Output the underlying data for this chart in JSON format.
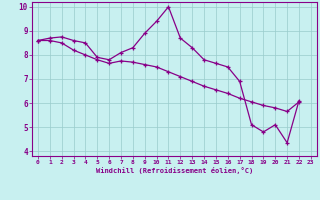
{
  "xlabel": "Windchill (Refroidissement éolien,°C)",
  "background_color": "#c8f0f0",
  "line_color": "#880088",
  "grid_color": "#99cccc",
  "xlim": [
    -0.5,
    23.5
  ],
  "ylim": [
    3.8,
    10.2
  ],
  "yticks": [
    4,
    5,
    6,
    7,
    8,
    9,
    10
  ],
  "xticks": [
    0,
    1,
    2,
    3,
    4,
    5,
    6,
    7,
    8,
    9,
    10,
    11,
    12,
    13,
    14,
    15,
    16,
    17,
    18,
    19,
    20,
    21,
    22,
    23
  ],
  "hours": [
    0,
    1,
    2,
    3,
    4,
    5,
    6,
    7,
    8,
    9,
    10,
    11,
    12,
    13,
    14,
    15,
    16,
    17,
    18,
    19,
    20,
    21,
    22,
    23
  ],
  "line1": [
    8.6,
    8.7,
    8.75,
    8.6,
    8.5,
    7.9,
    7.8,
    8.1,
    8.3,
    8.9,
    9.4,
    10.0,
    8.7,
    8.3,
    7.8,
    7.65,
    7.5,
    6.9,
    5.1,
    4.8,
    5.1,
    4.35,
    6.1,
    null
  ],
  "line2": [
    8.6,
    8.6,
    8.5,
    8.2,
    8.0,
    7.8,
    7.65,
    7.75,
    7.7,
    7.6,
    7.5,
    7.3,
    7.1,
    6.9,
    6.7,
    6.55,
    6.4,
    6.2,
    6.05,
    5.9,
    5.8,
    5.65,
    6.05,
    null
  ]
}
